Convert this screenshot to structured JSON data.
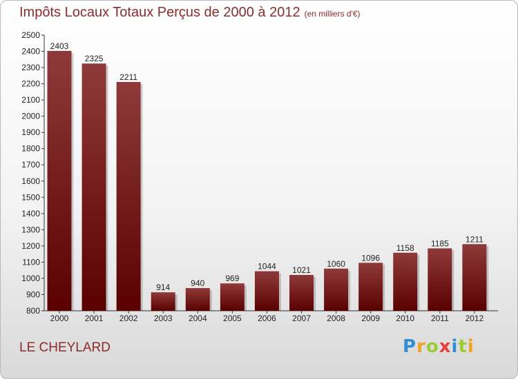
{
  "header": {
    "title": "Impôts Locaux Totaux Perçus de 2000 à 2012",
    "subtitle": "(en milliers d'€)"
  },
  "footer": {
    "place": "LE CHEYLARD",
    "logo_letters": [
      "P",
      "r",
      "o",
      "x",
      "i",
      "t",
      "i"
    ]
  },
  "colors": {
    "bar_top": "#8f3a3a",
    "bar_bottom": "#5a0000",
    "title": "#8b2c2c"
  },
  "chart_data": {
    "type": "bar",
    "title": "Impôts Locaux Totaux Perçus de 2000 à 2012",
    "xlabel": "",
    "ylabel": "",
    "ylim": [
      800,
      2500
    ],
    "yticks": [
      800,
      900,
      1000,
      1100,
      1200,
      1300,
      1400,
      1500,
      1600,
      1700,
      1800,
      1900,
      2000,
      2100,
      2200,
      2300,
      2400,
      2500
    ],
    "grid": false,
    "categories": [
      "2000",
      "2001",
      "2002",
      "2003",
      "2004",
      "2005",
      "2006",
      "2007",
      "2008",
      "2009",
      "2010",
      "2011",
      "2012"
    ],
    "values": [
      2403,
      2325,
      2211,
      914,
      940,
      969,
      1044,
      1021,
      1060,
      1096,
      1158,
      1185,
      1211
    ]
  }
}
